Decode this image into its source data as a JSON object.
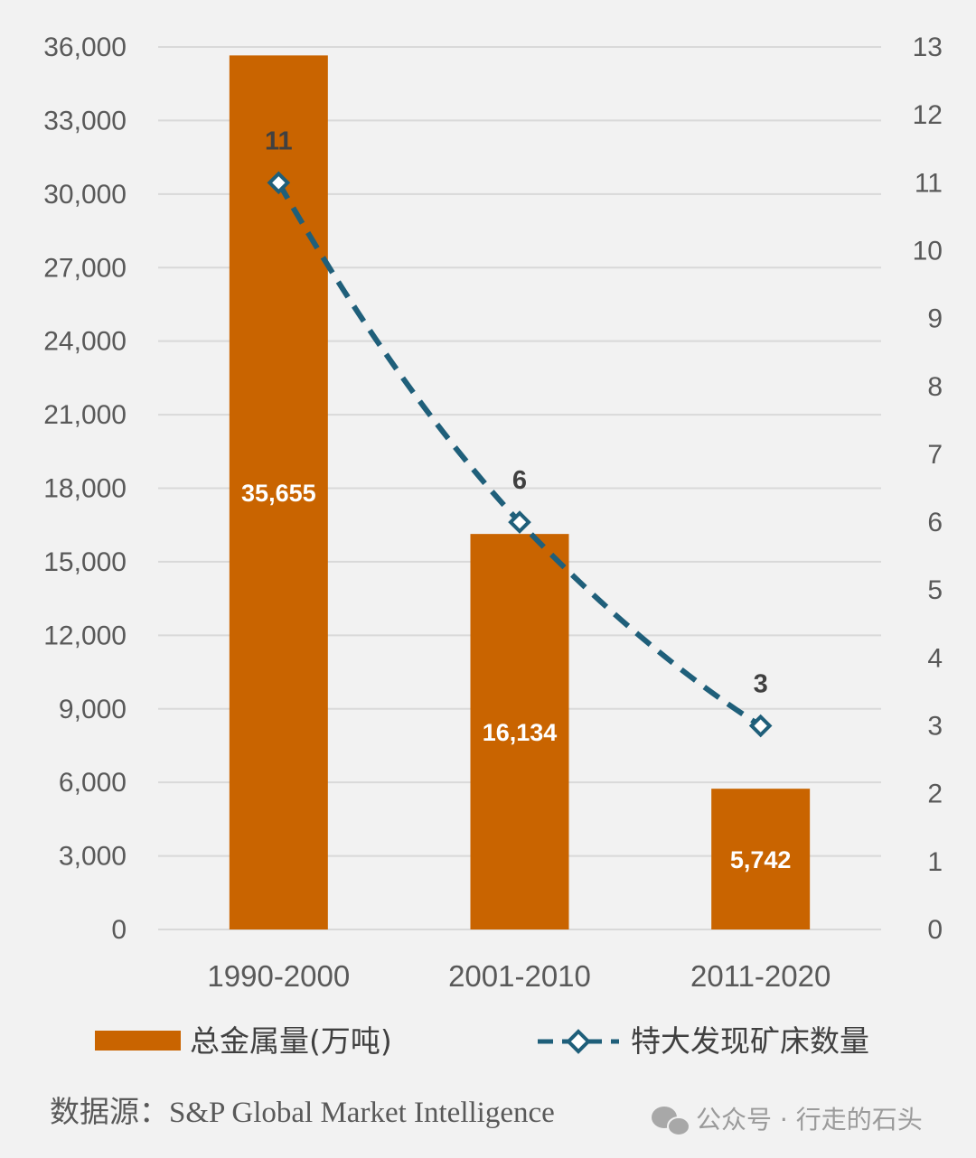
{
  "chart_data": {
    "type": "bar",
    "categories": [
      "1990-2000",
      "2001-2010",
      "2011-2020"
    ],
    "series": [
      {
        "name": "总金属量(万吨)",
        "type": "bar",
        "axis": "left",
        "values": [
          35655,
          16134,
          5742
        ],
        "labels": [
          "35,655",
          "16,134",
          "5,742"
        ],
        "color": "#c96400"
      },
      {
        "name": "特大发现矿床数量",
        "type": "line",
        "axis": "right",
        "values": [
          11,
          6,
          3
        ],
        "labels": [
          "11",
          "6",
          "3"
        ],
        "color": "#1f5f7a",
        "line_style": "dashed",
        "marker": "diamond"
      }
    ],
    "y_left": {
      "lim": [
        0,
        36000
      ],
      "ticks": [
        0,
        3000,
        6000,
        9000,
        12000,
        15000,
        18000,
        21000,
        24000,
        27000,
        30000,
        33000,
        36000
      ],
      "tick_labels": [
        "0",
        "3,000",
        "6,000",
        "9,000",
        "12,000",
        "15,000",
        "18,000",
        "21,000",
        "24,000",
        "27,000",
        "30,000",
        "33,000",
        "36,000"
      ]
    },
    "y_right": {
      "lim": [
        0,
        13
      ],
      "ticks": [
        0,
        1,
        2,
        3,
        4,
        5,
        6,
        7,
        8,
        9,
        10,
        11,
        12,
        13
      ],
      "tick_labels": [
        "0",
        "1",
        "2",
        "3",
        "4",
        "5",
        "6",
        "7",
        "8",
        "9",
        "10",
        "11",
        "12",
        "13"
      ]
    },
    "grid": true,
    "legend_position": "bottom"
  },
  "source": "数据源：S&P Global Market Intelligence",
  "watermark": "公众号 · 行走的石头",
  "colors": {
    "background": "#f2f2f2",
    "grid": "#d9d9d9",
    "bar": "#c96400",
    "line": "#1f5f7a"
  }
}
